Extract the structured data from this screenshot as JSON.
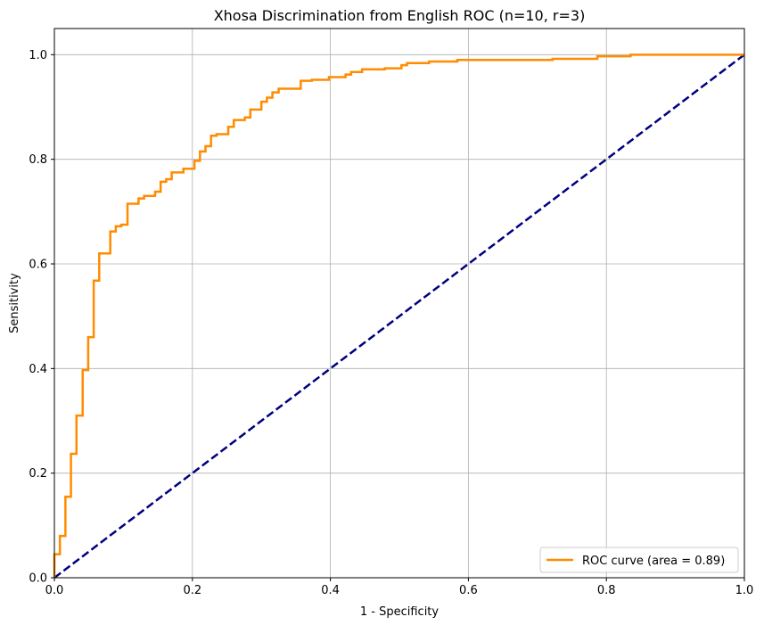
{
  "chart_data": {
    "type": "line",
    "title": "Xhosa Discrimination from English ROC (n=10, r=3)",
    "xlabel": "1 - Specificity",
    "ylabel": "Sensitivity",
    "xlim": [
      0.0,
      1.0
    ],
    "ylim": [
      0.0,
      1.05
    ],
    "grid": true,
    "legend_position": "bottom-right",
    "x_ticks": [
      "0.0",
      "0.2",
      "0.4",
      "0.6",
      "0.8",
      "1.0"
    ],
    "y_ticks": [
      "0.0",
      "0.2",
      "0.4",
      "0.6",
      "0.8",
      "1.0"
    ],
    "series": [
      {
        "name": "ROC curve (area = 0.89)",
        "color": "#ff8c00",
        "style": "solid",
        "points": [
          [
            0.0,
            0.0
          ],
          [
            0.0,
            0.045
          ],
          [
            0.008,
            0.045
          ],
          [
            0.008,
            0.08
          ],
          [
            0.016,
            0.08
          ],
          [
            0.016,
            0.155
          ],
          [
            0.024,
            0.155
          ],
          [
            0.024,
            0.237
          ],
          [
            0.032,
            0.237
          ],
          [
            0.032,
            0.31
          ],
          [
            0.041,
            0.31
          ],
          [
            0.041,
            0.397
          ],
          [
            0.049,
            0.397
          ],
          [
            0.049,
            0.46
          ],
          [
            0.057,
            0.46
          ],
          [
            0.057,
            0.568
          ],
          [
            0.065,
            0.568
          ],
          [
            0.065,
            0.62
          ],
          [
            0.081,
            0.62
          ],
          [
            0.081,
            0.662
          ],
          [
            0.089,
            0.662
          ],
          [
            0.089,
            0.672
          ],
          [
            0.097,
            0.672
          ],
          [
            0.097,
            0.675
          ],
          [
            0.106,
            0.675
          ],
          [
            0.106,
            0.715
          ],
          [
            0.122,
            0.715
          ],
          [
            0.122,
            0.725
          ],
          [
            0.13,
            0.725
          ],
          [
            0.13,
            0.73
          ],
          [
            0.146,
            0.73
          ],
          [
            0.146,
            0.738
          ],
          [
            0.154,
            0.738
          ],
          [
            0.154,
            0.757
          ],
          [
            0.162,
            0.757
          ],
          [
            0.162,
            0.762
          ],
          [
            0.17,
            0.762
          ],
          [
            0.17,
            0.775
          ],
          [
            0.187,
            0.775
          ],
          [
            0.187,
            0.782
          ],
          [
            0.203,
            0.782
          ],
          [
            0.203,
            0.797
          ],
          [
            0.211,
            0.797
          ],
          [
            0.211,
            0.815
          ],
          [
            0.219,
            0.815
          ],
          [
            0.219,
            0.825
          ],
          [
            0.227,
            0.825
          ],
          [
            0.227,
            0.845
          ],
          [
            0.235,
            0.845
          ],
          [
            0.235,
            0.848
          ],
          [
            0.252,
            0.848
          ],
          [
            0.252,
            0.862
          ],
          [
            0.26,
            0.862
          ],
          [
            0.26,
            0.875
          ],
          [
            0.276,
            0.875
          ],
          [
            0.276,
            0.88
          ],
          [
            0.284,
            0.88
          ],
          [
            0.284,
            0.895
          ],
          [
            0.3,
            0.895
          ],
          [
            0.3,
            0.91
          ],
          [
            0.308,
            0.91
          ],
          [
            0.308,
            0.918
          ],
          [
            0.316,
            0.918
          ],
          [
            0.316,
            0.928
          ],
          [
            0.325,
            0.928
          ],
          [
            0.325,
            0.935
          ],
          [
            0.357,
            0.935
          ],
          [
            0.357,
            0.95
          ],
          [
            0.373,
            0.95
          ],
          [
            0.373,
            0.952
          ],
          [
            0.398,
            0.952
          ],
          [
            0.398,
            0.957
          ],
          [
            0.422,
            0.957
          ],
          [
            0.422,
            0.962
          ],
          [
            0.43,
            0.962
          ],
          [
            0.43,
            0.967
          ],
          [
            0.446,
            0.967
          ],
          [
            0.446,
            0.972
          ],
          [
            0.479,
            0.972
          ],
          [
            0.479,
            0.974
          ],
          [
            0.503,
            0.974
          ],
          [
            0.503,
            0.98
          ],
          [
            0.511,
            0.98
          ],
          [
            0.511,
            0.984
          ],
          [
            0.543,
            0.984
          ],
          [
            0.543,
            0.987
          ],
          [
            0.584,
            0.987
          ],
          [
            0.584,
            0.99
          ],
          [
            0.722,
            0.99
          ],
          [
            0.722,
            0.992
          ],
          [
            0.787,
            0.992
          ],
          [
            0.787,
            0.997
          ],
          [
            0.835,
            0.997
          ],
          [
            0.835,
            1.0
          ],
          [
            1.0,
            1.0
          ]
        ]
      },
      {
        "name": "",
        "color": "#000080",
        "style": "dashed",
        "points": [
          [
            0.0,
            0.0
          ],
          [
            1.0,
            1.0
          ]
        ]
      }
    ]
  }
}
